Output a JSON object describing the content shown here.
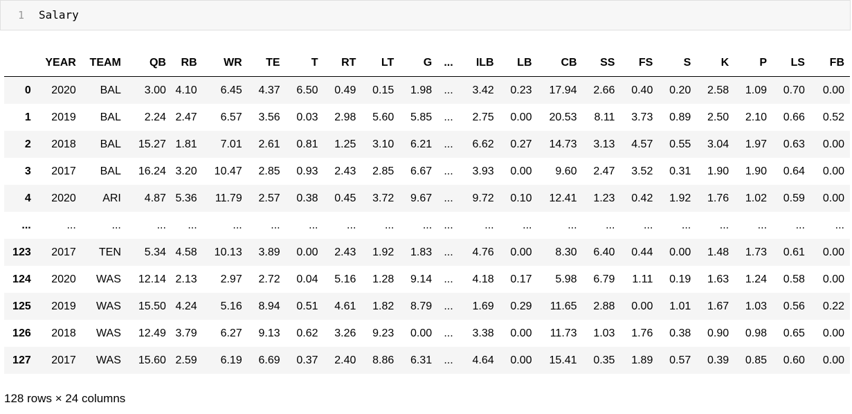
{
  "cell": {
    "line_number": "1",
    "code": "Salary"
  },
  "table": {
    "columns": [
      "",
      "YEAR",
      "TEAM",
      "QB",
      "RB",
      "WR",
      "TE",
      "T",
      "RT",
      "LT",
      "G",
      "...",
      "ILB",
      "LB",
      "CB",
      "SS",
      "FS",
      "S",
      "K",
      "P",
      "LS",
      "FB"
    ],
    "rows": [
      [
        "0",
        "2020",
        "BAL",
        "3.00",
        "4.10",
        "6.45",
        "4.37",
        "6.50",
        "0.49",
        "0.15",
        "1.98",
        "...",
        "3.42",
        "0.23",
        "17.94",
        "2.66",
        "0.40",
        "0.20",
        "2.58",
        "1.09",
        "0.70",
        "0.00"
      ],
      [
        "1",
        "2019",
        "BAL",
        "2.24",
        "2.47",
        "6.57",
        "3.56",
        "0.03",
        "2.98",
        "5.60",
        "5.85",
        "...",
        "2.75",
        "0.00",
        "20.53",
        "8.11",
        "3.73",
        "0.89",
        "2.50",
        "2.10",
        "0.66",
        "0.52"
      ],
      [
        "2",
        "2018",
        "BAL",
        "15.27",
        "1.81",
        "7.01",
        "2.61",
        "0.81",
        "1.25",
        "3.10",
        "6.21",
        "...",
        "6.62",
        "0.27",
        "14.73",
        "3.13",
        "4.57",
        "0.55",
        "3.04",
        "1.97",
        "0.63",
        "0.00"
      ],
      [
        "3",
        "2017",
        "BAL",
        "16.24",
        "3.20",
        "10.47",
        "2.85",
        "0.93",
        "2.43",
        "2.85",
        "6.67",
        "...",
        "3.93",
        "0.00",
        "9.60",
        "2.47",
        "3.52",
        "0.31",
        "1.90",
        "1.90",
        "0.64",
        "0.00"
      ],
      [
        "4",
        "2020",
        "ARI",
        "4.87",
        "5.36",
        "11.79",
        "2.57",
        "0.38",
        "0.45",
        "3.72",
        "9.67",
        "...",
        "9.72",
        "0.10",
        "12.41",
        "1.23",
        "0.42",
        "1.92",
        "1.76",
        "1.02",
        "0.59",
        "0.00"
      ],
      [
        "...",
        "...",
        "...",
        "...",
        "...",
        "...",
        "...",
        "...",
        "...",
        "...",
        "...",
        "...",
        "...",
        "...",
        "...",
        "...",
        "...",
        "...",
        "...",
        "...",
        "...",
        "..."
      ],
      [
        "123",
        "2017",
        "TEN",
        "5.34",
        "4.58",
        "10.13",
        "3.89",
        "0.00",
        "2.43",
        "1.92",
        "1.83",
        "...",
        "4.76",
        "0.00",
        "8.30",
        "6.40",
        "0.44",
        "0.00",
        "1.48",
        "1.73",
        "0.61",
        "0.00"
      ],
      [
        "124",
        "2020",
        "WAS",
        "12.14",
        "2.13",
        "2.97",
        "2.72",
        "0.04",
        "5.16",
        "1.28",
        "9.14",
        "...",
        "4.18",
        "0.17",
        "5.98",
        "6.79",
        "1.11",
        "0.19",
        "1.63",
        "1.24",
        "0.58",
        "0.00"
      ],
      [
        "125",
        "2019",
        "WAS",
        "15.50",
        "4.24",
        "5.16",
        "8.94",
        "0.51",
        "4.61",
        "1.82",
        "8.79",
        "...",
        "1.69",
        "0.29",
        "11.65",
        "2.88",
        "0.00",
        "1.01",
        "1.67",
        "1.03",
        "0.56",
        "0.22"
      ],
      [
        "126",
        "2018",
        "WAS",
        "12.49",
        "3.79",
        "6.27",
        "9.13",
        "0.62",
        "3.26",
        "9.23",
        "0.00",
        "...",
        "3.38",
        "0.00",
        "11.73",
        "1.03",
        "1.76",
        "0.38",
        "0.90",
        "0.98",
        "0.65",
        "0.00"
      ],
      [
        "127",
        "2017",
        "WAS",
        "15.60",
        "2.59",
        "6.19",
        "6.69",
        "0.37",
        "2.40",
        "8.86",
        "6.31",
        "...",
        "4.64",
        "0.00",
        "15.41",
        "0.35",
        "1.89",
        "0.57",
        "0.39",
        "0.85",
        "0.60",
        "0.00"
      ]
    ]
  },
  "footer": "128 rows × 24 columns"
}
